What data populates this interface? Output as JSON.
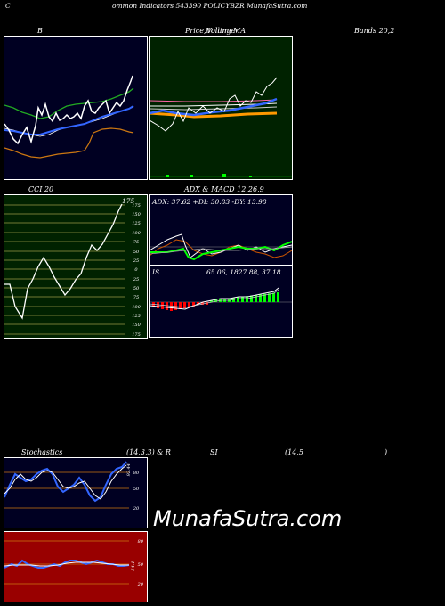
{
  "header": {
    "left": "C",
    "title": "ommon  Indicators 543390  POLICYBZR MunafaSutra.com"
  },
  "labels": {
    "b": "B",
    "price_left": "Price,  ",
    "price_mid": "Volume",
    "price_overlap": "Bollinger",
    "price_right": "MA",
    "bands": "Bands 20,2",
    "cci": "CCI 20",
    "adx_macd": "ADX  & MACD 12,26,9",
    "stoch_left": "Stochastics",
    "stoch_mid": "(14,3,3) & R",
    "rsi_si": "SI",
    "rsi_params": "(14,5",
    "rsi_close": ")"
  },
  "cci": {
    "value_label": "175",
    "ticks": [
      "175",
      "150",
      "125",
      "100",
      "75",
      "50",
      "25",
      "0",
      "25",
      "50",
      "75",
      "100",
      "125",
      "150",
      "175"
    ]
  },
  "adx": {
    "readout": "ADX: 37.62  +DI: 30.83 -DY: 13.98"
  },
  "macd": {
    "tag": "IS",
    "readout": "65.06,  1827.88,  37.18"
  },
  "stoch": {
    "ticks": [
      "80",
      "50",
      "20"
    ],
    "value": "92.44"
  },
  "rsi": {
    "ticks": [
      "80",
      "50",
      "20"
    ],
    "value": "54.1"
  },
  "watermark": "MunafaSutra.com",
  "colors": {
    "navy": "#000022",
    "green_panel": "#002200",
    "red_panel": "#990000",
    "orange": "#cc7711",
    "blue_line": "#3366ff",
    "bright_green": "#00ff00"
  }
}
